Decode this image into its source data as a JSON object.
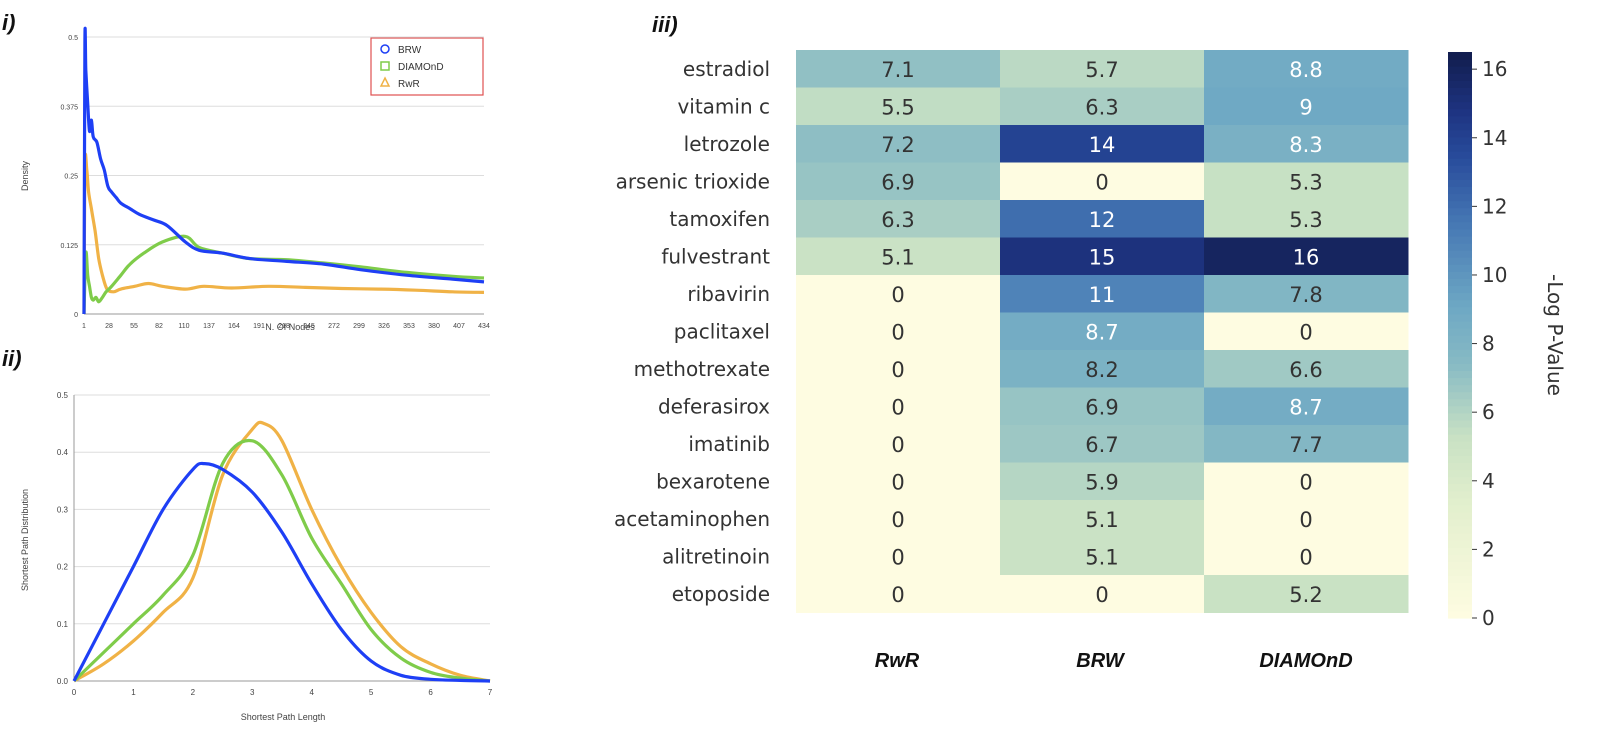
{
  "panels": {
    "i": "i)",
    "ii": "ii)",
    "iii": "iii)"
  },
  "colors": {
    "BRW": "#1e3ff5",
    "DIAMOnD": "#7fcc4a",
    "RwR": "#f0b246",
    "legend_border": "#e05050"
  },
  "chart_data": [
    {
      "id": "density",
      "type": "line",
      "xlabel": "N. Of Nodes",
      "ylabel": "Density",
      "xlim": [
        0,
        434
      ],
      "ylim": [
        0,
        0.5
      ],
      "xticks": [
        "1",
        "28",
        "55",
        "82",
        "110",
        "137",
        "164",
        "191",
        "218",
        "245",
        "272",
        "299",
        "326",
        "353",
        "380",
        "407",
        "434"
      ],
      "yticks": [
        "0",
        "0.125",
        "0.25",
        "0.375",
        "0.5"
      ],
      "ytick_values": [
        0,
        0.125,
        0.25,
        0.375,
        0.5
      ],
      "grid": true,
      "legend": {
        "position": "top-right",
        "entries": [
          "BRW",
          "DIAMOnD",
          "RwR"
        ]
      },
      "series": [
        {
          "name": "BRW",
          "x": [
            0,
            1,
            2,
            4,
            6,
            8,
            10,
            14,
            18,
            22,
            26,
            30,
            35,
            40,
            50,
            60,
            75,
            90,
            110,
            125,
            150,
            180,
            220,
            260,
            300,
            350,
            400,
            434
          ],
          "y": [
            0.0,
            0.49,
            0.44,
            0.38,
            0.33,
            0.35,
            0.32,
            0.31,
            0.28,
            0.26,
            0.23,
            0.22,
            0.21,
            0.2,
            0.19,
            0.18,
            0.17,
            0.16,
            0.13,
            0.115,
            0.11,
            0.1,
            0.095,
            0.09,
            0.08,
            0.07,
            0.063,
            0.058
          ]
        },
        {
          "name": "DIAMOnD",
          "x": [
            0,
            2,
            4,
            6,
            8,
            10,
            13,
            16,
            20,
            24,
            30,
            40,
            50,
            65,
            85,
            110,
            125,
            150,
            180,
            220,
            260,
            300,
            350,
            400,
            434
          ],
          "y": [
            0.0,
            0.11,
            0.07,
            0.05,
            0.03,
            0.025,
            0.03,
            0.022,
            0.03,
            0.04,
            0.05,
            0.07,
            0.09,
            0.11,
            0.13,
            0.14,
            0.12,
            0.11,
            0.1,
            0.098,
            0.092,
            0.085,
            0.075,
            0.068,
            0.065
          ]
        },
        {
          "name": "RwR",
          "x": [
            0,
            1,
            3,
            5,
            8,
            12,
            16,
            20,
            25,
            32,
            40,
            55,
            70,
            85,
            110,
            130,
            160,
            200,
            240,
            280,
            320,
            360,
            400,
            434
          ],
          "y": [
            0.0,
            0.27,
            0.26,
            0.22,
            0.19,
            0.15,
            0.1,
            0.07,
            0.045,
            0.04,
            0.045,
            0.05,
            0.055,
            0.05,
            0.045,
            0.05,
            0.047,
            0.05,
            0.048,
            0.046,
            0.045,
            0.043,
            0.04,
            0.039
          ]
        }
      ]
    },
    {
      "id": "shortest-path",
      "type": "line",
      "xlabel": "Shortest Path Length",
      "ylabel": "Shortest Path Distribution",
      "xlim": [
        0,
        7
      ],
      "ylim": [
        0,
        0.5
      ],
      "xticks": [
        "0",
        "1",
        "2",
        "3",
        "4",
        "5",
        "6",
        "7"
      ],
      "yticks": [
        "0.0",
        "0.1",
        "0.2",
        "0.3",
        "0.4",
        "0.5"
      ],
      "ytick_values": [
        0,
        0.1,
        0.2,
        0.3,
        0.4,
        0.5
      ],
      "grid": true,
      "series": [
        {
          "name": "BRW",
          "x": [
            0,
            0.5,
            1,
            1.5,
            2,
            2.2,
            2.5,
            3,
            3.5,
            4,
            4.5,
            5,
            5.5,
            6,
            6.5,
            7
          ],
          "y": [
            0.0,
            0.1,
            0.2,
            0.3,
            0.37,
            0.38,
            0.37,
            0.33,
            0.26,
            0.17,
            0.09,
            0.035,
            0.01,
            0.003,
            0.001,
            0.0
          ]
        },
        {
          "name": "DIAMOnD",
          "x": [
            0,
            0.5,
            1,
            1.5,
            2,
            2.5,
            3,
            3.5,
            4,
            4.5,
            5,
            5.5,
            6,
            6.5,
            7
          ],
          "y": [
            0.0,
            0.05,
            0.1,
            0.15,
            0.22,
            0.38,
            0.42,
            0.36,
            0.25,
            0.17,
            0.09,
            0.04,
            0.015,
            0.005,
            0.0
          ]
        },
        {
          "name": "RwR",
          "x": [
            0,
            0.5,
            1,
            1.5,
            2,
            2.5,
            3,
            3.2,
            3.5,
            4,
            4.5,
            5,
            5.5,
            6,
            6.5,
            7
          ],
          "y": [
            0.0,
            0.03,
            0.07,
            0.12,
            0.18,
            0.36,
            0.44,
            0.45,
            0.42,
            0.3,
            0.2,
            0.12,
            0.06,
            0.03,
            0.01,
            0.0
          ]
        }
      ]
    },
    {
      "id": "heatmap",
      "type": "heatmap",
      "columns": [
        "RwR",
        "BRW",
        "DIAMOnD"
      ],
      "rows": [
        "estradiol",
        "vitamin c",
        "letrozole",
        "arsenic trioxide",
        "tamoxifen",
        "fulvestrant",
        "ribavirin",
        "paclitaxel",
        "methotrexate",
        "deferasirox",
        "imatinib",
        "bexarotene",
        "acetaminophen",
        "alitretinoin",
        "etoposide"
      ],
      "values": [
        [
          7.1,
          5.7,
          8.8
        ],
        [
          5.5,
          6.3,
          9
        ],
        [
          7.2,
          14,
          8.3
        ],
        [
          6.9,
          0,
          5.3
        ],
        [
          6.3,
          12,
          5.3
        ],
        [
          5.1,
          15,
          16
        ],
        [
          0,
          11,
          7.8
        ],
        [
          0,
          8.7,
          0
        ],
        [
          0,
          8.2,
          6.6
        ],
        [
          0,
          6.9,
          8.7
        ],
        [
          0,
          6.7,
          7.7
        ],
        [
          0,
          5.9,
          0
        ],
        [
          0,
          5.1,
          0
        ],
        [
          0,
          5.1,
          0
        ],
        [
          0,
          0,
          5.2
        ]
      ],
      "colorbar": {
        "label": "-Log P-Value",
        "ticks": [
          "0",
          "2",
          "4",
          "6",
          "8",
          "10",
          "12",
          "14",
          "16"
        ],
        "range": [
          0,
          16.5
        ]
      }
    }
  ]
}
